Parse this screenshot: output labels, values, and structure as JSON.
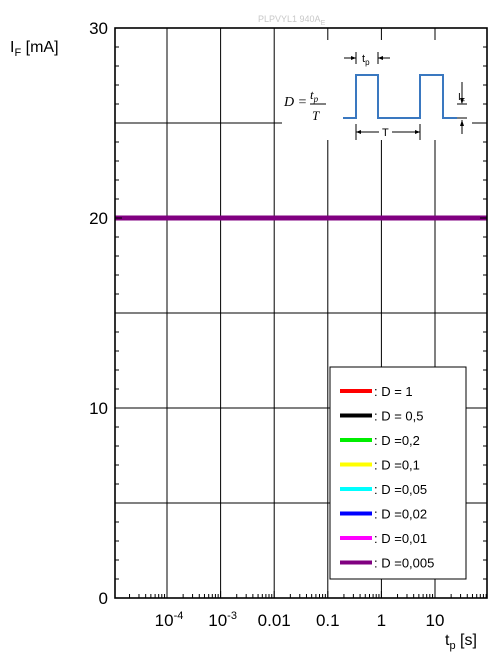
{
  "figure_code": "PLPVYL1 940A",
  "figure_code_sub": "E",
  "inset": {
    "formula_lhs": "D =",
    "formula_num": "t",
    "formula_num_sub": "p",
    "formula_den": "T",
    "pulse_label": "t",
    "pulse_label_sub": "p",
    "period_label": "T",
    "amp_label": "I",
    "amp_label_sub": "F",
    "color": "#3a78c0"
  },
  "chart_data": {
    "type": "line",
    "x_scale": "log",
    "ylabel": "I",
    "ylabel_sub": "F",
    "ylabel_unit": " [mA]",
    "xlabel": "t",
    "xlabel_sub": "p",
    "xlabel_unit": " [s]",
    "ylim": [
      0,
      30
    ],
    "yticks": [
      0,
      10,
      20,
      30
    ],
    "xticks": [
      {
        "value": 0.0001,
        "label": "10",
        "exp": "-4"
      },
      {
        "value": 0.001,
        "label": "10",
        "exp": "-3"
      },
      {
        "value": 0.01,
        "label": "0.01"
      },
      {
        "value": 0.1,
        "label": "0.1"
      },
      {
        "value": 1,
        "label": "1"
      },
      {
        "value": 10,
        "label": "10"
      }
    ],
    "grid": true,
    "legend_position": "bottom-right",
    "series": [
      {
        "name": ": D = 1",
        "color": "#ff0000",
        "x": [],
        "y": []
      },
      {
        "name": ": D = 0,5",
        "color": "#000000",
        "x": [],
        "y": []
      },
      {
        "name": ": D =0,2",
        "color": "#00ee00",
        "x": [],
        "y": []
      },
      {
        "name": ": D =0,1",
        "color": "#ffff00",
        "x": [],
        "y": []
      },
      {
        "name": ": D =0,05",
        "color": "#00ffff",
        "x": [],
        "y": []
      },
      {
        "name": ": D =0,02",
        "color": "#0000ff",
        "x": [],
        "y": []
      },
      {
        "name": ": D =0,01",
        "color": "#ff00ff",
        "x": [],
        "y": []
      },
      {
        "name": ": D =0,005",
        "color": "#800080",
        "x": [
          1e-05,
          100
        ],
        "y": [
          20,
          20
        ]
      }
    ]
  }
}
